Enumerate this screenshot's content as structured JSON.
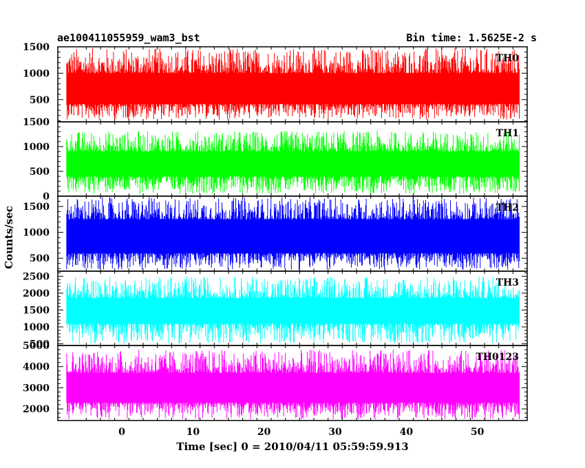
{
  "header": {
    "left": "ae100411055959_wam3_bst",
    "right": "Bin time: 1.5625E-2 s"
  },
  "chart_data": {
    "type": "line",
    "title": "ae100411055959_wam3_bst",
    "subtitle": "Bin time: 1.5625E-2 s",
    "xlabel": "Time [sec] 0 = 2010/04/11 05:59:59.913",
    "ylabel": "Counts/sec",
    "xlim": [
      -9,
      57
    ],
    "x_ticks": [
      0,
      10,
      20,
      30,
      40,
      50
    ],
    "x_range_data": [
      -7.75,
      55.9
    ],
    "bin_time": 0.015625,
    "grid": false,
    "panels": [
      {
        "name": "TH0",
        "color": "#ff0000",
        "ylim": [
          80,
          1500
        ],
        "y_ticks": [
          500,
          1000,
          1500
        ],
        "band": [
          420,
          1000
        ],
        "peaks": [
          1300,
          1480
        ],
        "dips": [
          120,
          300
        ]
      },
      {
        "name": "TH1",
        "color": "#00ff00",
        "ylim": [
          0,
          1500
        ],
        "y_ticks": [
          0,
          500,
          1000,
          1500
        ],
        "band": [
          400,
          900
        ],
        "peaks": [
          1100,
          1320
        ],
        "dips": [
          40,
          200
        ]
      },
      {
        "name": "TH2",
        "color": "#0000ff",
        "ylim": [
          250,
          1700
        ],
        "y_ticks": [
          500,
          1000,
          1500
        ],
        "band": [
          600,
          1250
        ],
        "peaks": [
          1450,
          1680
        ],
        "dips": [
          280,
          450
        ]
      },
      {
        "name": "TH3",
        "color": "#00ffff",
        "ylim": [
          450,
          2650
        ],
        "y_ticks": [
          500,
          1000,
          1500,
          2000,
          2500
        ],
        "band": [
          1100,
          1850
        ],
        "peaks": [
          2150,
          2500
        ],
        "dips": [
          500,
          750
        ]
      },
      {
        "name": "TH0123",
        "color": "#ff00ff",
        "ylim": [
          1450,
          5000
        ],
        "y_ticks": [
          2000,
          3000,
          4000,
          5000
        ],
        "band": [
          2300,
          3700
        ],
        "peaks": [
          4200,
          4800
        ],
        "dips": [
          1500,
          1900
        ]
      }
    ]
  }
}
